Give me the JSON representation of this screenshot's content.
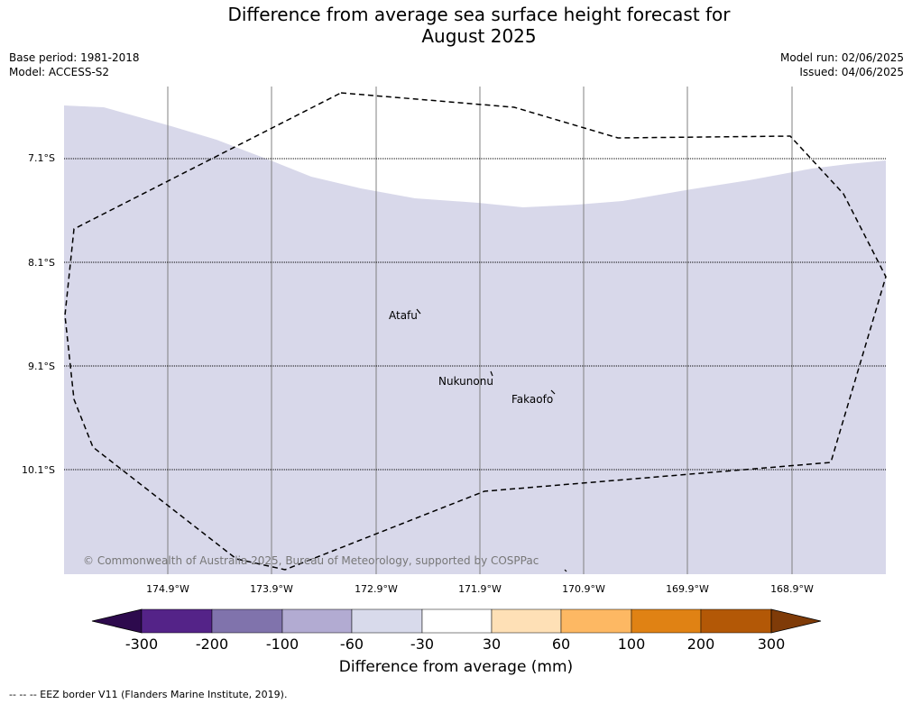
{
  "title": {
    "line1": "Difference from average sea surface height forecast for",
    "line2": "August 2025"
  },
  "meta": {
    "base_period": "Base period: 1981-2018",
    "model": "Model: ACCESS-S2",
    "model_run": "Model run: 02/06/2025",
    "issued": "Issued: 04/06/2025"
  },
  "map": {
    "latitudes": [
      "7.1°S",
      "8.1°S",
      "9.1°S",
      "10.1°S"
    ],
    "longitudes": [
      "174.9°W",
      "173.9°W",
      "172.9°W",
      "171.9°W",
      "170.9°W",
      "169.9°W",
      "168.9°W"
    ],
    "places": [
      "Atafu",
      "Nukunonu",
      "Fakaofo"
    ],
    "copyright": "© Commonwealth of Australia 2025, Bureau of Meteorology, supported by COSPPac",
    "fill_color": "#d8d8ea",
    "fill_category": "-60 to -30"
  },
  "colorbar": {
    "ticks": [
      "-300",
      "-200",
      "-100",
      "-60",
      "-30",
      "30",
      "60",
      "100",
      "200",
      "300"
    ],
    "colors": [
      "#2d0a4d",
      "#542388",
      "#8073ac",
      "#b2abd2",
      "#d8daeb",
      "#ffffff",
      "#fee0b6",
      "#fdb863",
      "#e08214",
      "#b35806",
      "#7f3b08"
    ],
    "label": "Difference from average (mm)"
  },
  "legend_note": "--  --  -- EEZ border V11 (Flanders Marine Institute, 2019)."
}
